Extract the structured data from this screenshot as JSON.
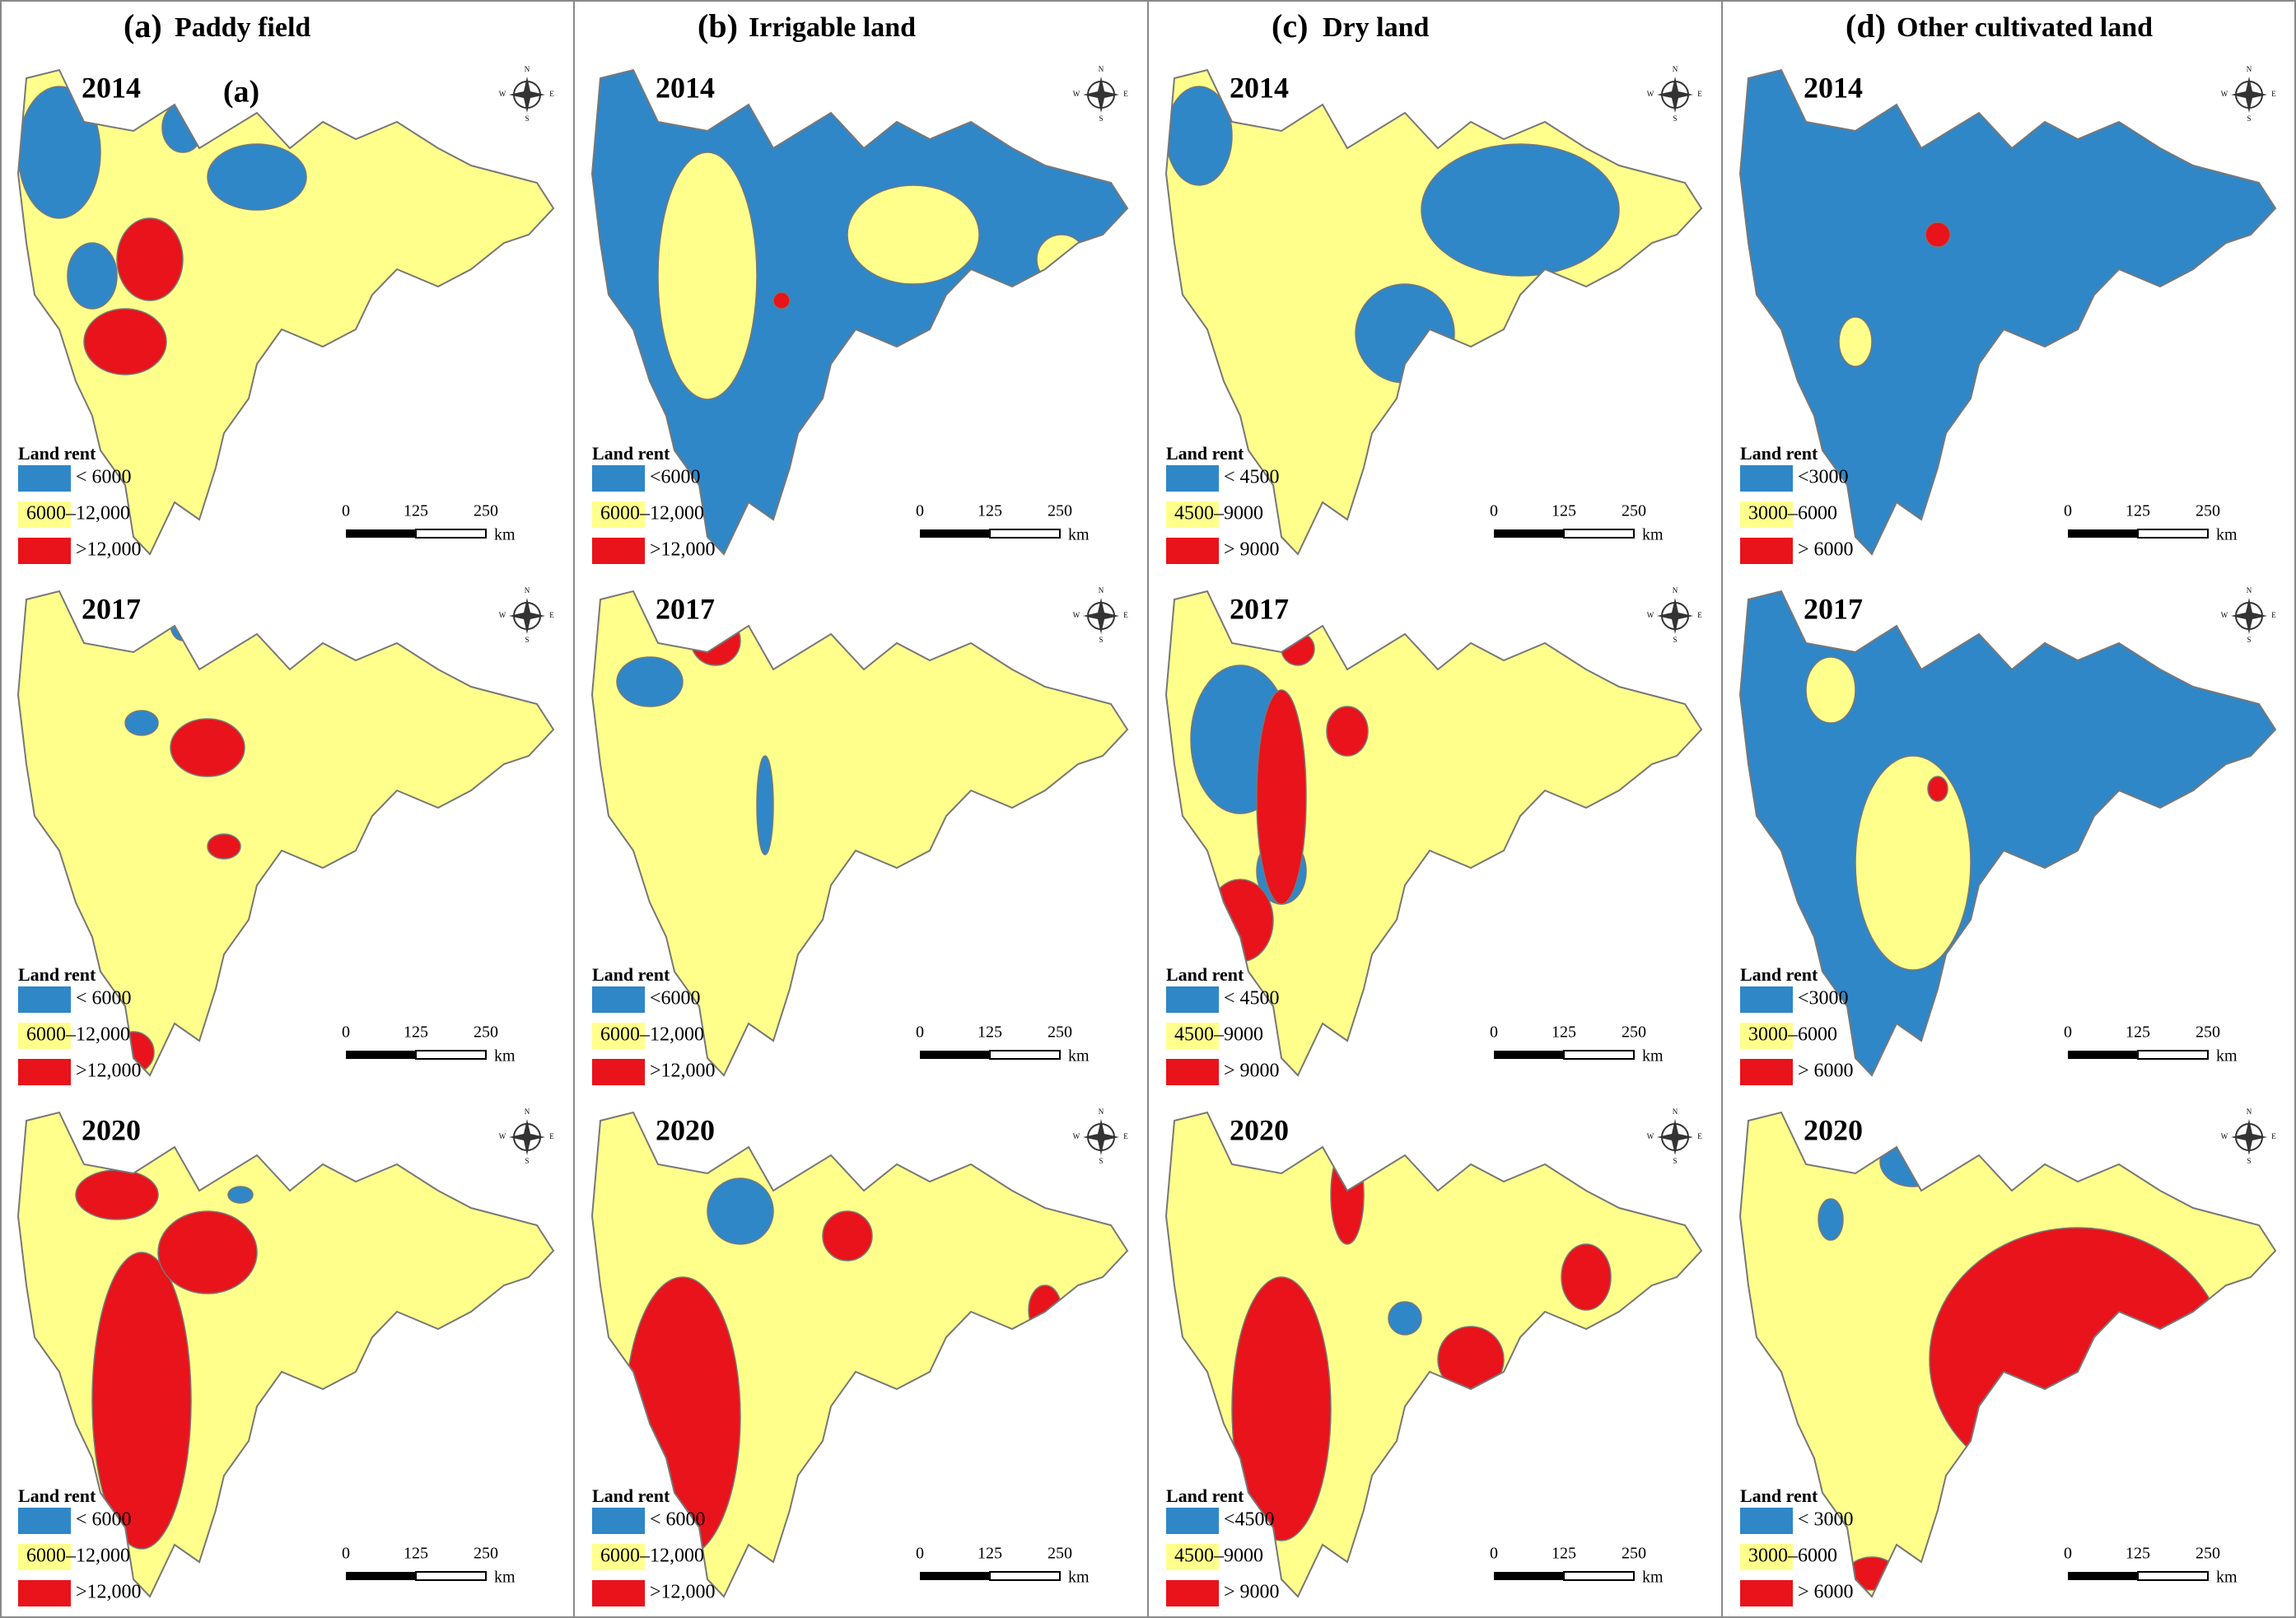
{
  "panels": [
    {
      "label": "(a)",
      "title": "Paddy field",
      "maps": [
        {
          "year": "2014",
          "extra_label": "(a)",
          "legend": [
            "< 6000",
            "6000–12,000",
            ">12,000"
          ]
        },
        {
          "year": "2017",
          "legend": [
            "< 6000",
            "6000–12,000",
            ">12,000"
          ]
        },
        {
          "year": "2020",
          "legend": [
            "< 6000",
            "6000–12,000",
            ">12,000"
          ]
        }
      ]
    },
    {
      "label": "(b)",
      "title": "Irrigable land",
      "maps": [
        {
          "year": "2014",
          "legend": [
            "<6000",
            "6000–12,000",
            ">12,000"
          ]
        },
        {
          "year": "2017",
          "legend": [
            "<6000",
            "6000–12,000",
            ">12,000"
          ]
        },
        {
          "year": "2020",
          "legend": [
            "< 6000",
            "6000–12,000",
            ">12,000"
          ]
        }
      ]
    },
    {
      "label": "(c)",
      "title": "Dry land",
      "maps": [
        {
          "year": "2014",
          "legend": [
            "< 4500",
            "4500–9000",
            "> 9000"
          ]
        },
        {
          "year": "2017",
          "legend": [
            "< 4500",
            "4500–9000",
            "> 9000"
          ]
        },
        {
          "year": "2020",
          "legend": [
            "<4500",
            "4500–9000",
            "> 9000"
          ]
        }
      ]
    },
    {
      "label": "(d)",
      "title": "Other cultivated land",
      "maps": [
        {
          "year": "2014",
          "legend": [
            "<3000",
            "3000–6000",
            "> 6000"
          ]
        },
        {
          "year": "2017",
          "legend": [
            "<3000",
            "3000–6000",
            "> 6000"
          ]
        },
        {
          "year": "2020",
          "legend": [
            "< 3000",
            "3000–6000",
            "> 6000"
          ]
        }
      ]
    }
  ],
  "legend_title": "Land rent",
  "legend_colors": [
    "#2f87c8",
    "#ffff8c",
    "#e8131b"
  ],
  "scale_bar": {
    "ticks": [
      "0",
      "125",
      "250"
    ],
    "unit": "km"
  },
  "compass": [
    "N",
    "W",
    "E",
    "S"
  ]
}
